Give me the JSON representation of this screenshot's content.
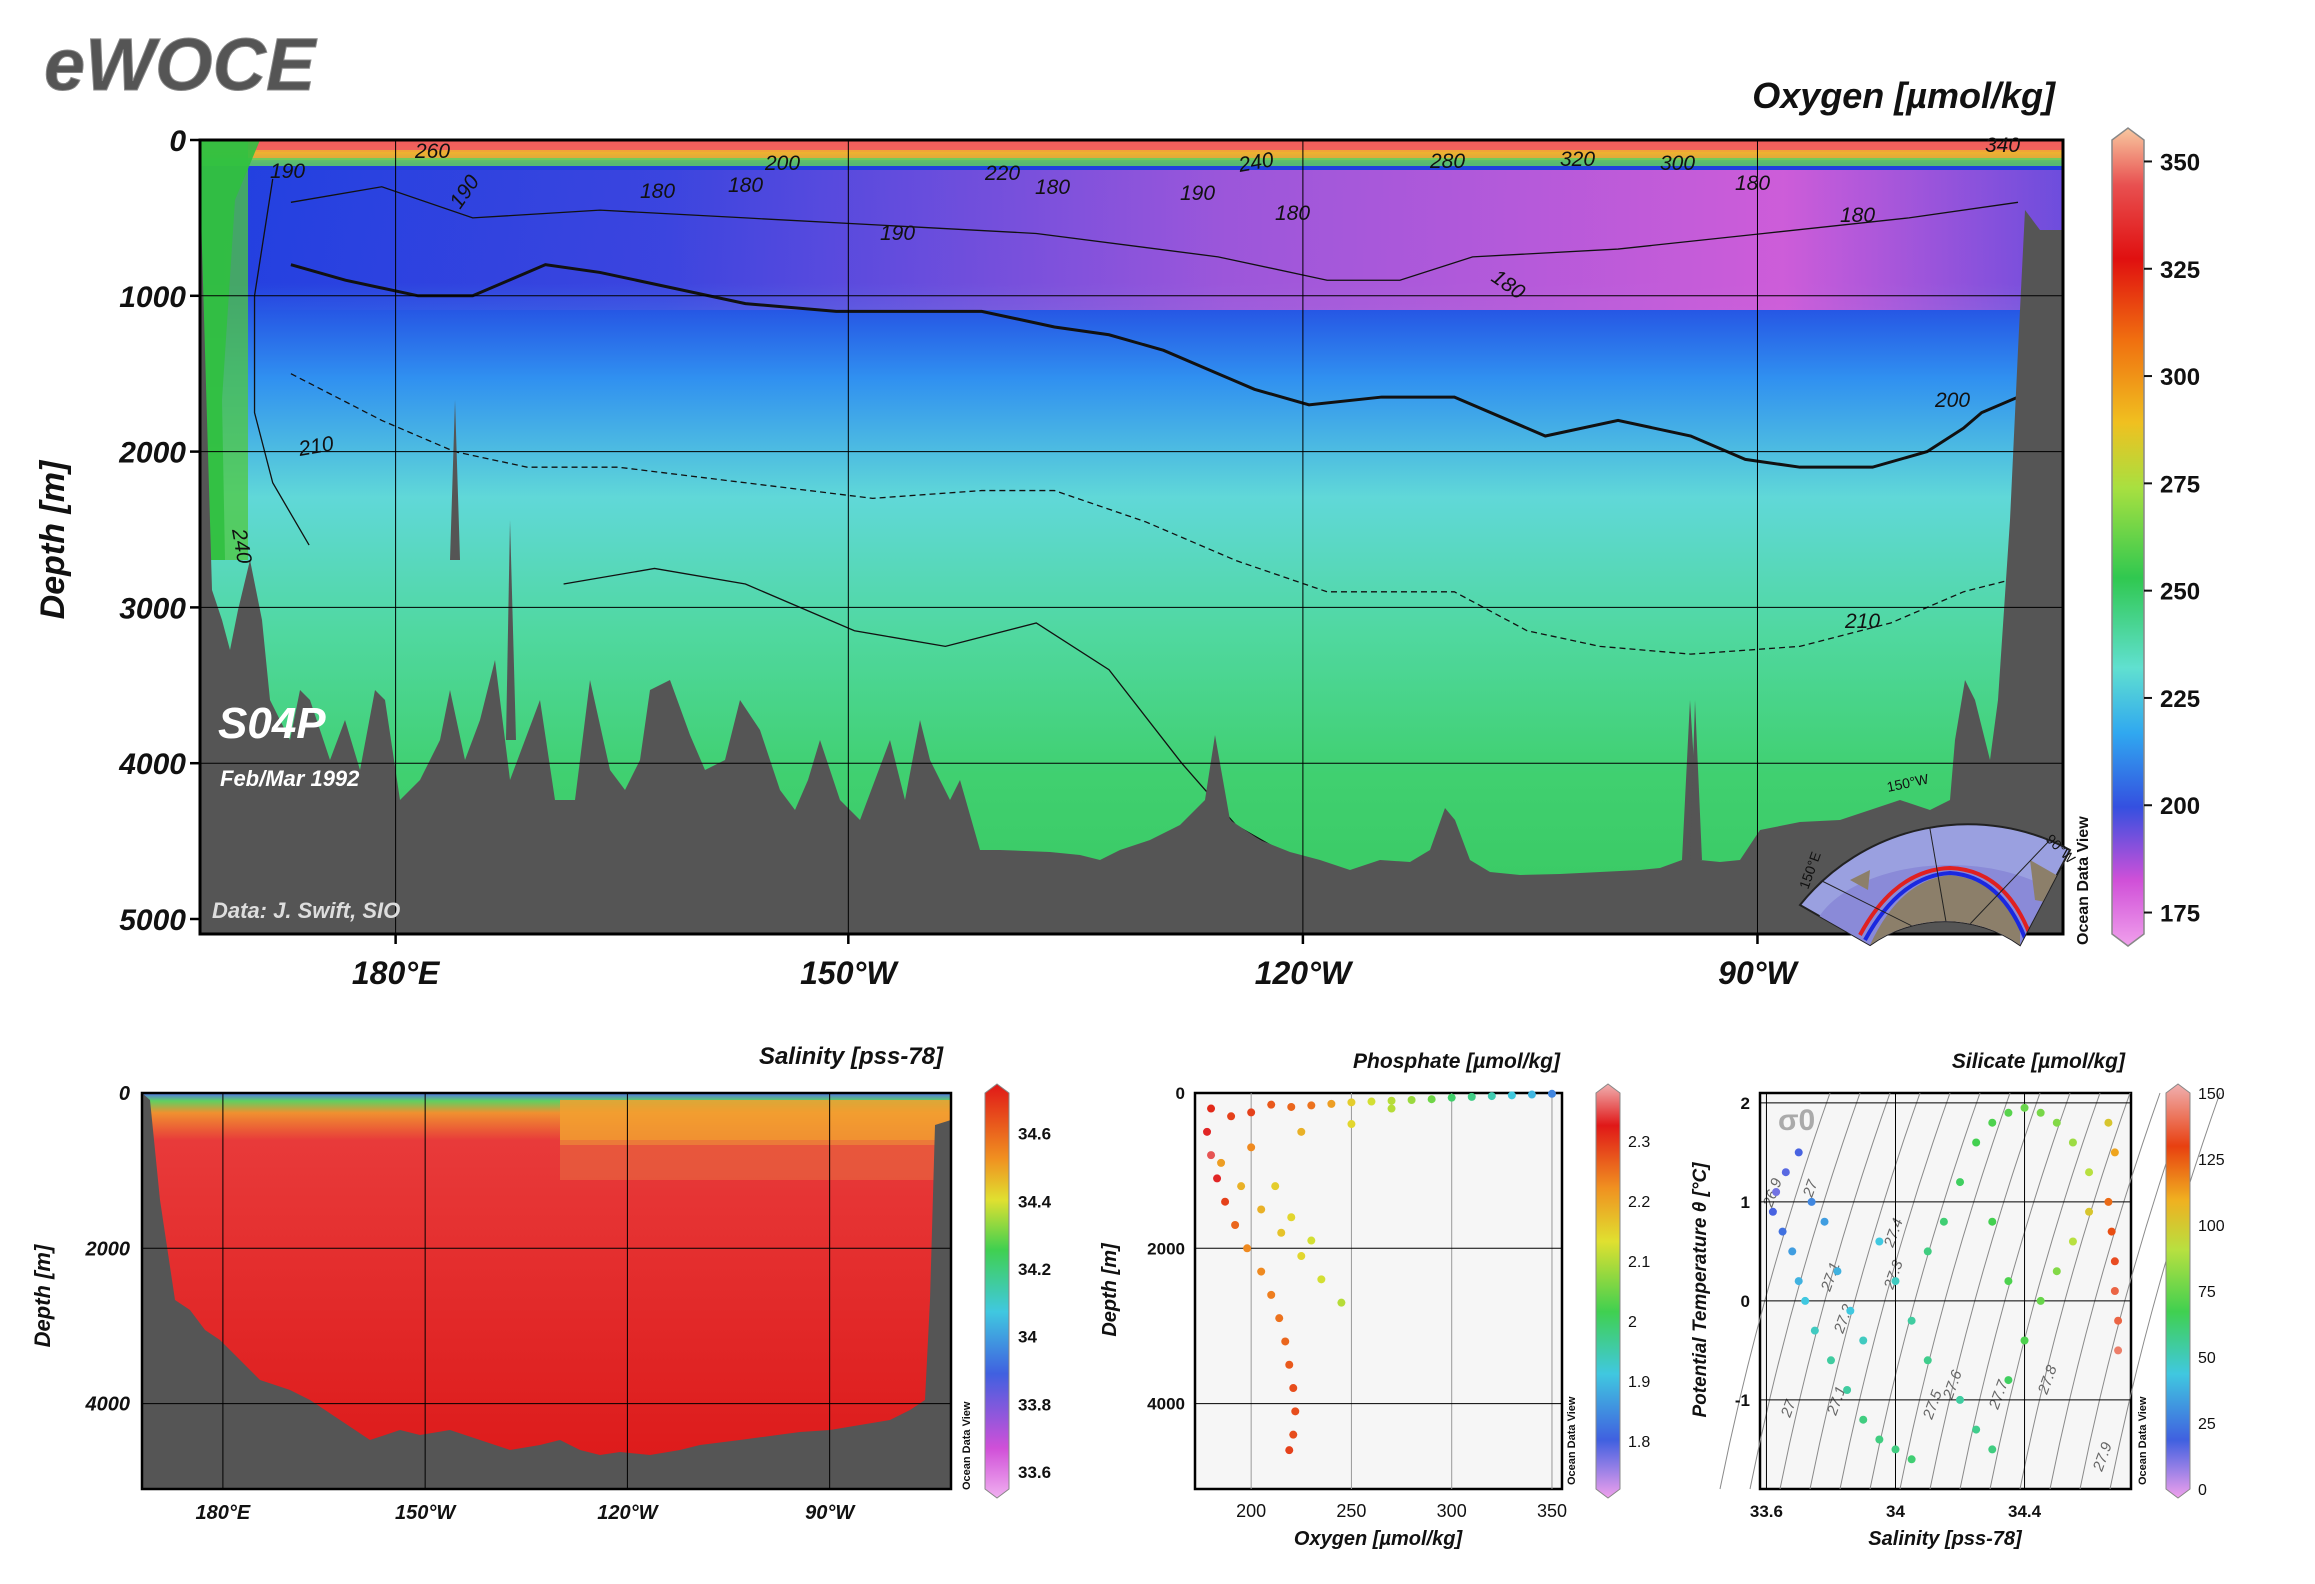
{
  "logo": "eWOCE",
  "main": {
    "title": "Oxygen [µmol/kg]",
    "ylabel": "Depth [m]",
    "section": "S04P",
    "date": "Feb/Mar 1992",
    "credit": "Data: J. Swift, SIO",
    "watermark": "Ocean Data View",
    "map_labels": [
      "150°W",
      "90°W",
      "150°E"
    ]
  },
  "salinity": {
    "title": "Salinity [pss-78]",
    "ylabel": "Depth [m]",
    "watermark": "Ocean Data View"
  },
  "phosphate": {
    "title": "Phosphate [µmol/kg]",
    "xlabel": "Oxygen [µmol/kg]",
    "ylabel": "Depth [m]",
    "watermark": "Ocean Data View"
  },
  "silicate": {
    "title": "Silicate [µmol/kg]",
    "xlabel": "Salinity [pss-78]",
    "ylabel": "Potential Temperature θ [°C]",
    "sigma_label": "σ0",
    "watermark": "Ocean Data View"
  },
  "chart_data": [
    {
      "id": "oxygen-section",
      "type": "heatmap",
      "title": "Oxygen [µmol/kg]",
      "ylabel": "Depth [m]",
      "x_ticks": [
        "180°E",
        "150°W",
        "120°W",
        "90°W"
      ],
      "y_ticks": [
        0,
        1000,
        2000,
        3000,
        4000,
        5000
      ],
      "colorbar_ticks": [
        175,
        200,
        225,
        250,
        275,
        300,
        325,
        350
      ],
      "colorbar_range": [
        170,
        355
      ],
      "contour_labels": [
        "190",
        "190",
        "260",
        "200",
        "180",
        "220",
        "180",
        "180",
        "190",
        "240",
        "180",
        "280",
        "320",
        "300",
        "190",
        "180",
        "340",
        "180",
        "180",
        "200",
        "210",
        "240",
        "210"
      ],
      "contours": [
        {
          "level": 200,
          "points": [
            [
              0.05,
              0.16
            ],
            [
              0.08,
              0.18
            ],
            [
              0.12,
              0.2
            ],
            [
              0.15,
              0.2
            ],
            [
              0.17,
              0.18
            ],
            [
              0.19,
              0.16
            ],
            [
              0.22,
              0.17
            ],
            [
              0.26,
              0.19
            ],
            [
              0.3,
              0.21
            ],
            [
              0.35,
              0.22
            ],
            [
              0.4,
              0.22
            ],
            [
              0.43,
              0.22
            ],
            [
              0.47,
              0.24
            ],
            [
              0.5,
              0.25
            ],
            [
              0.53,
              0.27
            ],
            [
              0.56,
              0.3
            ],
            [
              0.58,
              0.32
            ],
            [
              0.61,
              0.34
            ],
            [
              0.65,
              0.33
            ],
            [
              0.69,
              0.33
            ],
            [
              0.72,
              0.36
            ],
            [
              0.74,
              0.38
            ],
            [
              0.78,
              0.36
            ],
            [
              0.82,
              0.38
            ],
            [
              0.85,
              0.41
            ],
            [
              0.88,
              0.42
            ],
            [
              0.92,
              0.42
            ],
            [
              0.95,
              0.4
            ],
            [
              0.97,
              0.37
            ],
            [
              0.98,
              0.35
            ],
            [
              1.0,
              0.33
            ],
            [
              1.02,
              0.3
            ],
            [
              1.03,
              0.27
            ]
          ]
        },
        {
          "level": 210,
          "points": [
            [
              0.05,
              0.3
            ],
            [
              0.1,
              0.36
            ],
            [
              0.14,
              0.4
            ],
            [
              0.18,
              0.42
            ],
            [
              0.23,
              0.42
            ],
            [
              0.3,
              0.44
            ],
            [
              0.37,
              0.46
            ],
            [
              0.43,
              0.45
            ],
            [
              0.47,
              0.45
            ],
            [
              0.52,
              0.49
            ],
            [
              0.57,
              0.54
            ],
            [
              0.62,
              0.58
            ],
            [
              0.69,
              0.58
            ],
            [
              0.73,
              0.63
            ],
            [
              0.77,
              0.65
            ],
            [
              0.82,
              0.66
            ],
            [
              0.88,
              0.65
            ],
            [
              0.93,
              0.62
            ],
            [
              0.97,
              0.58
            ],
            [
              1.02,
              0.55
            ]
          ]
        },
        {
          "level": 210,
          "points": [
            [
              0.2,
              0.57
            ],
            [
              0.25,
              0.55
            ],
            [
              0.3,
              0.57
            ],
            [
              0.36,
              0.63
            ],
            [
              0.41,
              0.65
            ],
            [
              0.46,
              0.62
            ],
            [
              0.5,
              0.68
            ],
            [
              0.54,
              0.8
            ],
            [
              0.57,
              0.88
            ],
            [
              0.6,
              0.92
            ]
          ]
        },
        {
          "level": 190,
          "points": [
            [
              0.05,
              0.08
            ],
            [
              0.1,
              0.06
            ],
            [
              0.15,
              0.1
            ],
            [
              0.22,
              0.09
            ],
            [
              0.3,
              0.1
            ],
            [
              0.38,
              0.11
            ],
            [
              0.46,
              0.12
            ],
            [
              0.56,
              0.15
            ],
            [
              0.62,
              0.18
            ],
            [
              0.66,
              0.18
            ],
            [
              0.7,
              0.15
            ],
            [
              0.78,
              0.14
            ],
            [
              0.86,
              0.12
            ],
            [
              0.94,
              0.1
            ],
            [
              1.0,
              0.08
            ]
          ]
        },
        {
          "level": 240,
          "points": [
            [
              0.04,
              0.05
            ],
            [
              0.03,
              0.2
            ],
            [
              0.03,
              0.35
            ],
            [
              0.04,
              0.44
            ],
            [
              0.06,
              0.52
            ]
          ]
        }
      ],
      "note": "shaded section, 0–5000 m depth"
    },
    {
      "id": "salinity-section",
      "type": "heatmap",
      "title": "Salinity [pss-78]",
      "ylabel": "Depth [m]",
      "x_ticks": [
        "180°E",
        "150°W",
        "120°W",
        "90°W"
      ],
      "y_ticks": [
        0,
        2000,
        4000
      ],
      "colorbar_ticks": [
        33.6,
        33.8,
        34,
        34.2,
        34.4,
        34.6
      ],
      "colorbar_range": [
        33.55,
        34.72
      ]
    },
    {
      "id": "phosphate-scatter",
      "type": "scatter",
      "title": "Phosphate [µmol/kg]",
      "xlabel": "Oxygen [µmol/kg]",
      "ylabel": "Depth [m]",
      "x_ticks": [
        200,
        250,
        300,
        350
      ],
      "xlim": [
        172,
        355
      ],
      "y_ticks": [
        0,
        2000,
        4000
      ],
      "ylim": [
        0,
        5100
      ],
      "colorbar_ticks": [
        1.8,
        1.9,
        2,
        2.1,
        2.2,
        2.3
      ],
      "colorbar_range": [
        1.72,
        2.38
      ],
      "points": [
        [
          180,
          200,
          2.3
        ],
        [
          190,
          300,
          2.28
        ],
        [
          200,
          250,
          2.28
        ],
        [
          210,
          150,
          2.26
        ],
        [
          220,
          180,
          2.25
        ],
        [
          230,
          160,
          2.24
        ],
        [
          240,
          140,
          2.2
        ],
        [
          250,
          120,
          2.15
        ],
        [
          260,
          110,
          2.12
        ],
        [
          270,
          100,
          2.1
        ],
        [
          280,
          90,
          2.08
        ],
        [
          290,
          80,
          2.05
        ],
        [
          300,
          60,
          2.0
        ],
        [
          310,
          50,
          1.98
        ],
        [
          320,
          40,
          1.95
        ],
        [
          330,
          30,
          1.92
        ],
        [
          340,
          20,
          1.9
        ],
        [
          350,
          10,
          1.85
        ],
        [
          178,
          500,
          2.32
        ],
        [
          180,
          800,
          2.34
        ],
        [
          183,
          1100,
          2.32
        ],
        [
          187,
          1400,
          2.28
        ],
        [
          192,
          1700,
          2.25
        ],
        [
          198,
          2000,
          2.22
        ],
        [
          205,
          2300,
          2.22
        ],
        [
          210,
          2600,
          2.23
        ],
        [
          214,
          2900,
          2.24
        ],
        [
          217,
          3200,
          2.25
        ],
        [
          219,
          3500,
          2.26
        ],
        [
          221,
          3800,
          2.27
        ],
        [
          222,
          4100,
          2.27
        ],
        [
          221,
          4400,
          2.27
        ],
        [
          219,
          4600,
          2.28
        ],
        [
          185,
          900,
          2.2
        ],
        [
          195,
          1200,
          2.18
        ],
        [
          205,
          1500,
          2.18
        ],
        [
          215,
          1800,
          2.16
        ],
        [
          225,
          2100,
          2.14
        ],
        [
          235,
          2400,
          2.12
        ],
        [
          245,
          2700,
          2.1
        ],
        [
          212,
          1200,
          2.15
        ],
        [
          220,
          1600,
          2.14
        ],
        [
          230,
          1900,
          2.12
        ],
        [
          200,
          700,
          2.22
        ],
        [
          225,
          500,
          2.18
        ],
        [
          250,
          400,
          2.14
        ],
        [
          270,
          200,
          2.1
        ]
      ]
    },
    {
      "id": "silicate-ts",
      "type": "scatter",
      "title": "Silicate [µmol/kg]",
      "xlabel": "Salinity [pss-78]",
      "ylabel": "Potential Temperature θ [°C]",
      "x_ticks": [
        33.6,
        34,
        34.4
      ],
      "xlim": [
        33.58,
        34.73
      ],
      "y_ticks": [
        -1,
        0,
        1,
        2
      ],
      "ylim": [
        -1.9,
        2.1
      ],
      "colorbar_ticks": [
        0,
        25,
        50,
        75,
        100,
        125,
        150
      ],
      "colorbar_range": [
        0,
        150
      ],
      "isopycnal_labels": [
        "26.9",
        "27",
        "27.1",
        "27.2",
        "27.3",
        "27.4",
        "27.5",
        "27.6",
        "27.7",
        "27.8",
        "27.9",
        "27",
        "27.1"
      ],
      "points": [
        [
          33.62,
          0.9,
          20
        ],
        [
          33.65,
          0.7,
          25
        ],
        [
          33.68,
          0.5,
          35
        ],
        [
          33.7,
          0.2,
          40
        ],
        [
          33.72,
          0.0,
          45
        ],
        [
          33.75,
          -0.3,
          50
        ],
        [
          33.8,
          -0.6,
          55
        ],
        [
          33.85,
          -0.9,
          55
        ],
        [
          33.9,
          -1.2,
          60
        ],
        [
          33.95,
          -1.4,
          60
        ],
        [
          34.0,
          -1.5,
          60
        ],
        [
          34.05,
          -1.6,
          62
        ],
        [
          33.63,
          1.1,
          15
        ],
        [
          33.66,
          1.3,
          18
        ],
        [
          33.7,
          1.5,
          20
        ],
        [
          33.74,
          1.0,
          30
        ],
        [
          33.78,
          0.8,
          35
        ],
        [
          33.82,
          0.3,
          40
        ],
        [
          33.86,
          -0.1,
          45
        ],
        [
          33.9,
          -0.4,
          50
        ],
        [
          34.1,
          0.5,
          60
        ],
        [
          34.15,
          0.8,
          62
        ],
        [
          34.2,
          1.2,
          65
        ],
        [
          34.25,
          1.6,
          68
        ],
        [
          34.3,
          1.8,
          70
        ],
        [
          34.35,
          1.9,
          72
        ],
        [
          34.4,
          1.95,
          75
        ],
        [
          34.45,
          1.9,
          78
        ],
        [
          34.5,
          1.8,
          80
        ],
        [
          34.55,
          1.6,
          85
        ],
        [
          34.6,
          1.3,
          90
        ],
        [
          34.2,
          -1.0,
          55
        ],
        [
          34.25,
          -1.3,
          58
        ],
        [
          34.3,
          -1.5,
          60
        ],
        [
          34.35,
          -0.8,
          65
        ],
        [
          34.4,
          -0.4,
          70
        ],
        [
          34.45,
          0.0,
          75
        ],
        [
          34.5,
          0.3,
          80
        ],
        [
          34.55,
          0.6,
          90
        ],
        [
          34.6,
          0.9,
          100
        ],
        [
          34.66,
          1.0,
          120
        ],
        [
          34.67,
          0.7,
          125
        ],
        [
          34.68,
          0.4,
          130
        ],
        [
          34.68,
          0.1,
          135
        ],
        [
          34.69,
          -0.2,
          135
        ],
        [
          34.69,
          -0.5,
          140
        ],
        [
          34.68,
          1.5,
          110
        ],
        [
          34.66,
          1.8,
          100
        ],
        [
          34.0,
          0.2,
          50
        ],
        [
          34.05,
          -0.2,
          55
        ],
        [
          34.1,
          -0.6,
          58
        ],
        [
          33.95,
          0.6,
          45
        ],
        [
          34.3,
          0.8,
          68
        ],
        [
          34.35,
          0.2,
          70
        ]
      ]
    }
  ]
}
